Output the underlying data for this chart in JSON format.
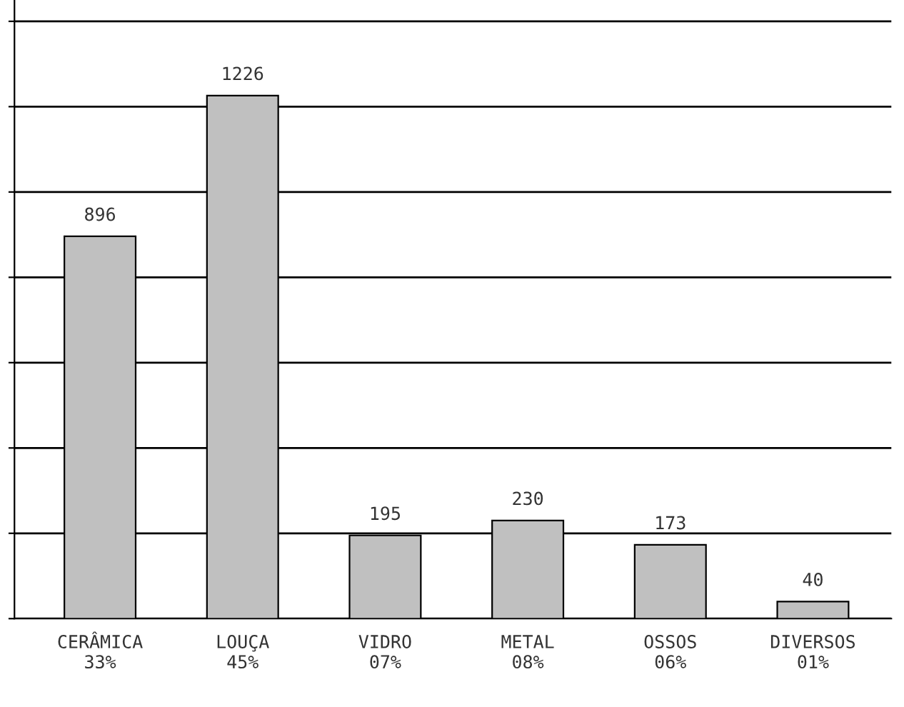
{
  "chart_data": {
    "type": "bar",
    "categories": [
      "CERÂMICA\n33%",
      "LOUÇA\n45%",
      "VIDRO\n07%",
      "METAL\n08%",
      "OSSOS\n06%",
      "DIVERSOS\n01%"
    ],
    "values": [
      896,
      1226,
      195,
      230,
      173,
      40
    ],
    "color": "#c0c0c0",
    "data_labels": true,
    "ylim": [
      0,
      1450
    ],
    "yticks": [
      {
        "value": 0,
        "label": null
      },
      {
        "value": 200,
        "label": null
      },
      {
        "value": 400,
        "label": null
      },
      {
        "value": 600,
        "label": null
      },
      {
        "value": 800,
        "label": null
      },
      {
        "value": 1000,
        "label": null
      },
      {
        "value": 1200,
        "label": null
      },
      {
        "value": 1400,
        "label": null
      }
    ],
    "grid": "y",
    "legend": false
  }
}
